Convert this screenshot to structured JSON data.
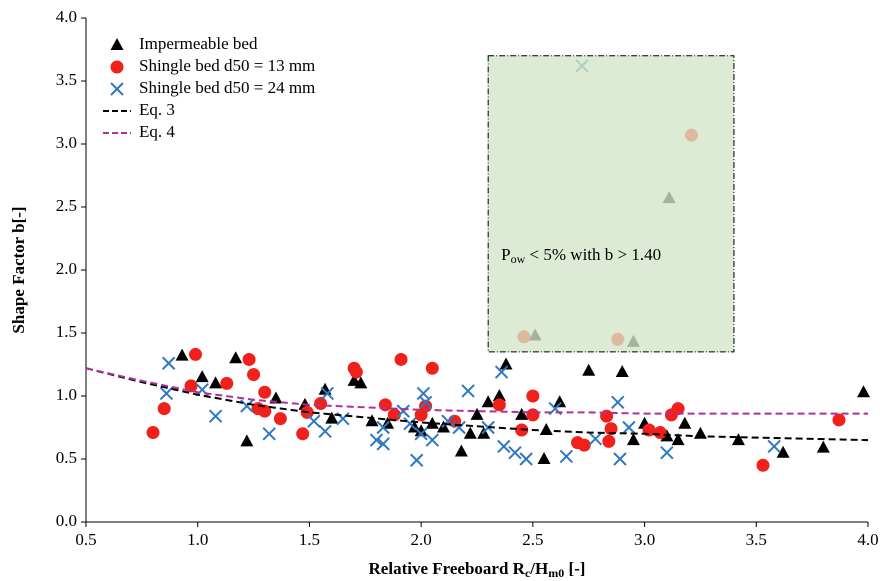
{
  "chart_data": {
    "type": "scatter",
    "y_label": "Shape Factor b[-]",
    "x_label": [
      "Relative Freeboard R",
      "c",
      "/H",
      "m0",
      " [-]"
    ],
    "annotation": [
      "P",
      "ow",
      " < 5% with b > 1.40"
    ],
    "highlight_box": {
      "xlim": [
        2.3,
        3.4
      ],
      "ylim": [
        1.35,
        3.7
      ],
      "color": "#d5e6c8"
    },
    "xlim": [
      0.5,
      4.0
    ],
    "ylim": [
      0.0,
      4.0
    ],
    "xticks": [
      0.5,
      {
        "value": 1,
        "label": "1.0"
      },
      1.5,
      {
        "value": 2,
        "label": "2.0"
      },
      2.5,
      {
        "value": 3,
        "label": "3.0"
      },
      3.5,
      {
        "value": 4,
        "label": "4.0"
      }
    ],
    "yticks": [
      {
        "value": 0,
        "label": "0.0"
      },
      0.5,
      {
        "value": 1,
        "label": "1.0"
      },
      1.5,
      {
        "value": 2,
        "label": "2.0"
      },
      2.5,
      {
        "value": 3,
        "label": "3.0"
      },
      3.5,
      {
        "value": 4,
        "label": "4.0"
      }
    ],
    "legend": "upper left",
    "series": [
      {
        "name": "Impermeable bed",
        "color": "#000000",
        "marker": "triangle",
        "x": [
          0.93,
          1.02,
          1.08,
          1.17,
          1.22,
          1.35,
          1.48,
          1.57,
          1.6,
          1.7,
          1.73,
          1.78,
          1.85,
          1.97,
          2.0,
          2.05,
          2.1,
          2.18,
          2.22,
          2.25,
          2.28,
          2.3,
          2.35,
          2.38,
          2.45,
          2.55,
          2.56,
          2.62,
          2.75,
          2.9,
          2.95,
          3.0,
          3.1,
          3.15,
          3.18,
          3.25,
          3.42,
          3.62,
          3.8,
          3.98,
          2.51,
          2.95,
          3.11
        ],
        "y": [
          1.32,
          1.15,
          1.1,
          1.3,
          0.64,
          0.98,
          0.93,
          1.05,
          0.82,
          1.12,
          1.1,
          0.8,
          0.78,
          0.75,
          0.72,
          0.78,
          0.75,
          0.56,
          0.7,
          0.85,
          0.7,
          0.95,
          1.0,
          1.25,
          0.85,
          0.5,
          0.73,
          0.95,
          1.2,
          1.19,
          0.65,
          0.78,
          0.68,
          0.65,
          0.78,
          0.7,
          0.65,
          0.55,
          0.59,
          1.03,
          1.48,
          1.43,
          2.57
        ]
      },
      {
        "name": "Shingle bed d50 = 13 mm",
        "color": "#f0201a",
        "marker": "circle",
        "x": [
          0.8,
          0.85,
          0.97,
          0.99,
          1.13,
          1.23,
          1.25,
          1.27,
          1.3,
          1.3,
          1.37,
          1.47,
          1.49,
          1.55,
          1.7,
          1.71,
          1.84,
          1.88,
          1.91,
          2.0,
          2.02,
          2.05,
          2.15,
          2.35,
          2.45,
          2.5,
          2.5,
          2.7,
          2.73,
          2.83,
          2.85,
          2.84,
          3.02,
          3.07,
          3.12,
          3.15,
          3.53,
          3.87,
          2.46,
          2.88,
          3.21
        ],
        "y": [
          0.71,
          0.9,
          1.08,
          1.33,
          1.1,
          1.29,
          1.17,
          0.9,
          0.88,
          1.03,
          0.82,
          0.7,
          0.87,
          0.94,
          1.22,
          1.19,
          0.93,
          0.85,
          1.29,
          0.85,
          0.92,
          1.22,
          0.8,
          0.93,
          0.73,
          1.0,
          0.85,
          0.63,
          0.61,
          0.84,
          0.74,
          0.64,
          0.73,
          0.71,
          0.85,
          0.9,
          0.45,
          0.81,
          1.47,
          1.45,
          3.07
        ]
      },
      {
        "name": "Shingle bed d50 = 24 mm",
        "color": "#2f78c0",
        "marker": "cross",
        "x": [
          0.87,
          0.86,
          1.02,
          1.08,
          1.22,
          1.32,
          1.52,
          1.57,
          1.58,
          1.65,
          1.8,
          1.83,
          1.83,
          1.92,
          1.95,
          1.98,
          2.0,
          2.01,
          2.02,
          2.05,
          2.12,
          2.17,
          2.21,
          2.3,
          2.36,
          2.37,
          2.42,
          2.47,
          2.6,
          2.65,
          2.78,
          2.88,
          2.89,
          2.93,
          3.1,
          3.58,
          2.72
        ],
        "y": [
          1.26,
          1.02,
          1.05,
          0.84,
          0.92,
          0.7,
          0.8,
          0.72,
          1.02,
          0.82,
          0.65,
          0.62,
          0.75,
          0.88,
          0.78,
          0.49,
          0.7,
          1.02,
          0.95,
          0.65,
          0.8,
          0.75,
          1.04,
          0.75,
          1.19,
          0.6,
          0.55,
          0.5,
          0.9,
          0.52,
          0.66,
          0.95,
          0.5,
          0.75,
          0.55,
          0.6,
          3.62
        ]
      },
      {
        "name": "Eq. 3",
        "color": "#000000",
        "marker": "dashed",
        "x": [
          0.5,
          0.75,
          1.0,
          1.25,
          1.5,
          1.75,
          2.0,
          2.25,
          2.5,
          2.75,
          3.0,
          3.25,
          3.5,
          3.75,
          4.0
        ],
        "y": [
          1.22,
          1.11,
          1.01,
          0.93,
          0.87,
          0.83,
          0.79,
          0.76,
          0.73,
          0.71,
          0.7,
          0.68,
          0.67,
          0.66,
          0.65
        ]
      },
      {
        "name": "Eq. 4",
        "color": "#b0309a",
        "marker": "dashed",
        "x": [
          0.5,
          0.75,
          1.0,
          1.25,
          1.5,
          1.75,
          2.0,
          2.25,
          2.5,
          2.75,
          3.0,
          3.25,
          3.5,
          3.75,
          4.0
        ],
        "y": [
          1.22,
          1.12,
          1.03,
          0.97,
          0.93,
          0.91,
          0.89,
          0.88,
          0.87,
          0.87,
          0.86,
          0.86,
          0.86,
          0.86,
          0.86
        ]
      }
    ]
  }
}
